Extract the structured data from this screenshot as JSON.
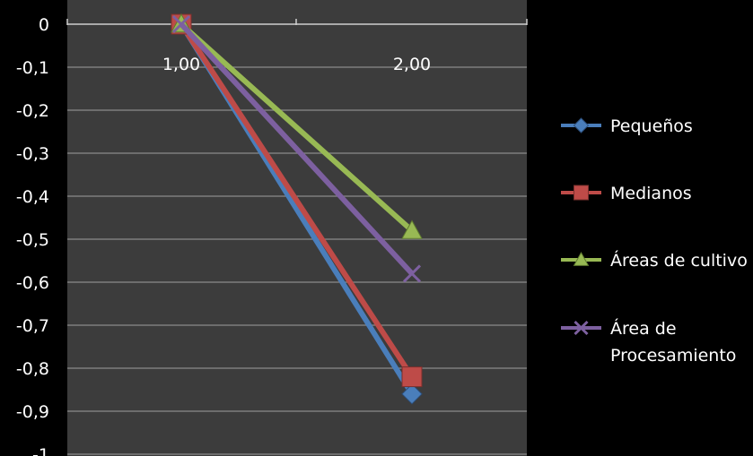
{
  "chart_data": {
    "type": "line",
    "x": [
      1.0,
      2.0
    ],
    "x_tick_labels": [
      "1,00",
      "2,00"
    ],
    "y_tick_labels": [
      "0",
      "-0,1",
      "-0,2",
      "-0,3",
      "-0,4",
      "-0,5",
      "-0,6",
      "-0,7",
      "-0,8",
      "-0,9",
      "-1"
    ],
    "y_ticks": [
      0,
      -0.1,
      -0.2,
      -0.3,
      -0.4,
      -0.5,
      -0.6,
      -0.7,
      -0.8,
      -0.9,
      -1
    ],
    "ylim": [
      -1,
      0
    ],
    "grid": true,
    "legend_position": "right",
    "series": [
      {
        "name": "Pequeños",
        "values": [
          0,
          -0.86
        ],
        "color": "#4a7ebb",
        "marker": "diamond"
      },
      {
        "name": "Medianos",
        "values": [
          0,
          -0.82
        ],
        "color": "#be4b48",
        "marker": "square"
      },
      {
        "name": "Áreas de cultivo",
        "values": [
          0,
          -0.48
        ],
        "color": "#98b954",
        "marker": "triangle"
      },
      {
        "name": "Área de Procesamiento",
        "name_lines": [
          "Área de",
          "Procesamiento"
        ],
        "values": [
          0,
          -0.58
        ],
        "color": "#7d60a0",
        "marker": "x"
      }
    ],
    "plot_background": "#3c3c3c",
    "gridline_color": "#8a8a8a",
    "text_color": "#ffffff",
    "page_background": "#000000"
  }
}
